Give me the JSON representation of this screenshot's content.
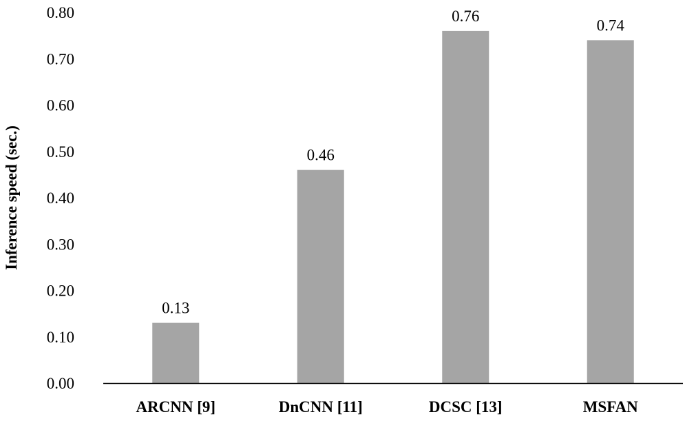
{
  "chart_data": {
    "type": "bar",
    "title": "",
    "xlabel": "",
    "ylabel": "Inference speed (sec.)",
    "categories": [
      "ARCNN [9]",
      "DnCNN [11]",
      "DCSC [13]",
      "MSFAN"
    ],
    "values": [
      0.13,
      0.46,
      0.76,
      0.74
    ],
    "data_labels": [
      "0.13",
      "0.46",
      "0.76",
      "0.74"
    ],
    "ylim": [
      0,
      0.8
    ],
    "yticks": [
      "0.00",
      "0.10",
      "0.20",
      "0.30",
      "0.40",
      "0.50",
      "0.60",
      "0.70",
      "0.80"
    ],
    "grid": false,
    "bar_color": "#a5a5a5",
    "axis_color": "#000000"
  }
}
